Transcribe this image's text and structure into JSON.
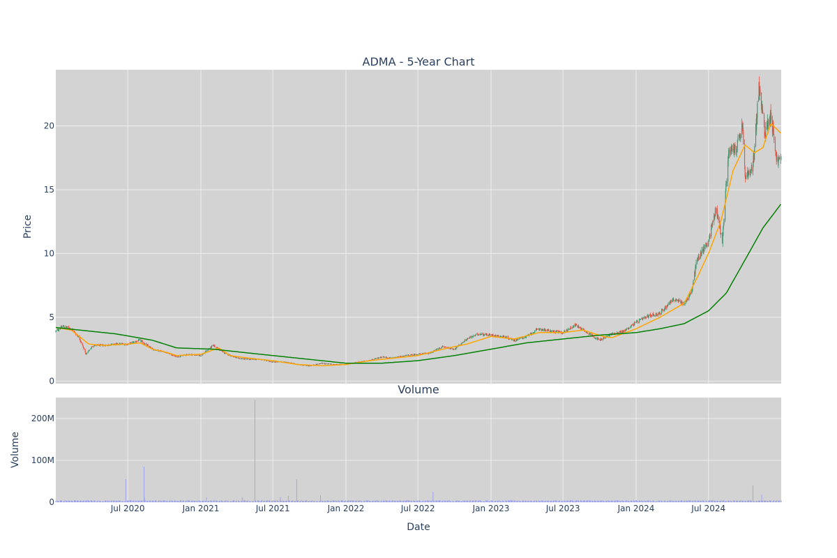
{
  "colors": {
    "plot_bg": "#d3d3d3",
    "grid": "#eeeeee",
    "up_candle": "#3d9970",
    "down_candle": "#ef4b3c",
    "ma_short": "#ffa500",
    "ma_long": "#008000",
    "volume_bar": "#9aa0f0",
    "text": "#2a3f5f"
  },
  "chart_data": [
    {
      "type": "candlestick",
      "title": "ADMA - 5-Year Chart",
      "ylabel": "Price",
      "ylim": [
        0,
        25
      ],
      "grid": true,
      "legend": "none",
      "yticks": [
        0,
        5,
        10,
        15,
        20
      ],
      "ytick_labels": [
        "0",
        "5",
        "10",
        "15",
        "20"
      ],
      "xrange": [
        "2020-01-02",
        "2024-12-31"
      ],
      "price_anchors": [
        [
          "2020-01-02",
          3.9
        ],
        [
          "2020-01-20",
          4.3
        ],
        [
          "2020-02-10",
          4.1
        ],
        [
          "2020-03-01",
          3.4
        ],
        [
          "2020-03-18",
          2.1
        ],
        [
          "2020-04-05",
          2.8
        ],
        [
          "2020-05-01",
          2.8
        ],
        [
          "2020-06-01",
          2.9
        ],
        [
          "2020-07-01",
          2.9
        ],
        [
          "2020-08-01",
          3.2
        ],
        [
          "2020-09-01",
          2.5
        ],
        [
          "2020-10-01",
          2.3
        ],
        [
          "2020-11-01",
          1.9
        ],
        [
          "2020-12-01",
          2.1
        ],
        [
          "2021-01-01",
          2.0
        ],
        [
          "2021-02-01",
          2.8
        ],
        [
          "2021-03-01",
          2.2
        ],
        [
          "2021-04-01",
          1.8
        ],
        [
          "2021-05-01",
          1.7
        ],
        [
          "2021-06-01",
          1.7
        ],
        [
          "2021-07-01",
          1.5
        ],
        [
          "2021-08-01",
          1.5
        ],
        [
          "2021-09-01",
          1.3
        ],
        [
          "2021-10-01",
          1.2
        ],
        [
          "2021-11-01",
          1.4
        ],
        [
          "2021-12-01",
          1.3
        ],
        [
          "2022-01-01",
          1.3
        ],
        [
          "2022-02-01",
          1.5
        ],
        [
          "2022-03-01",
          1.6
        ],
        [
          "2022-04-01",
          1.9
        ],
        [
          "2022-05-01",
          1.8
        ],
        [
          "2022-06-01",
          2.0
        ],
        [
          "2022-07-01",
          2.1
        ],
        [
          "2022-08-01",
          2.2
        ],
        [
          "2022-09-01",
          2.7
        ],
        [
          "2022-10-01",
          2.5
        ],
        [
          "2022-11-01",
          3.3
        ],
        [
          "2022-12-01",
          3.7
        ],
        [
          "2023-01-01",
          3.6
        ],
        [
          "2023-02-01",
          3.5
        ],
        [
          "2023-03-01",
          3.2
        ],
        [
          "2023-04-01",
          3.5
        ],
        [
          "2023-05-01",
          4.1
        ],
        [
          "2023-06-01",
          3.9
        ],
        [
          "2023-07-01",
          3.8
        ],
        [
          "2023-08-01",
          4.4
        ],
        [
          "2023-09-01",
          3.8
        ],
        [
          "2023-10-01",
          3.2
        ],
        [
          "2023-11-01",
          3.7
        ],
        [
          "2023-12-01",
          3.9
        ],
        [
          "2024-01-01",
          4.6
        ],
        [
          "2024-02-01",
          5.1
        ],
        [
          "2024-03-01",
          5.3
        ],
        [
          "2024-04-01",
          6.4
        ],
        [
          "2024-05-01",
          6.1
        ],
        [
          "2024-05-20",
          7.0
        ],
        [
          "2024-06-01",
          9.4
        ],
        [
          "2024-07-01",
          11.0
        ],
        [
          "2024-07-20",
          13.6
        ],
        [
          "2024-08-05",
          11.0
        ],
        [
          "2024-08-20",
          17.8
        ],
        [
          "2024-09-10",
          18.3
        ],
        [
          "2024-09-25",
          20.0
        ],
        [
          "2024-10-01",
          16.0
        ],
        [
          "2024-10-20",
          16.5
        ],
        [
          "2024-11-05",
          23.0
        ],
        [
          "2024-11-20",
          19.5
        ],
        [
          "2024-12-05",
          21.0
        ],
        [
          "2024-12-20",
          17.3
        ],
        [
          "2024-12-31",
          17.3
        ]
      ],
      "ma_short": [
        [
          "2020-01-02",
          4.2
        ],
        [
          "2020-02-10",
          4.0
        ],
        [
          "2020-03-25",
          2.9
        ],
        [
          "2020-05-01",
          2.8
        ],
        [
          "2020-07-01",
          2.9
        ],
        [
          "2020-08-01",
          3.0
        ],
        [
          "2020-09-01",
          2.5
        ],
        [
          "2020-10-01",
          2.3
        ],
        [
          "2020-11-01",
          2.0
        ],
        [
          "2021-01-01",
          2.1
        ],
        [
          "2021-02-15",
          2.6
        ],
        [
          "2021-03-15",
          2.0
        ],
        [
          "2021-05-01",
          1.8
        ],
        [
          "2021-07-01",
          1.6
        ],
        [
          "2021-09-01",
          1.3
        ],
        [
          "2021-11-01",
          1.2
        ],
        [
          "2022-01-01",
          1.3
        ],
        [
          "2022-03-01",
          1.6
        ],
        [
          "2022-05-01",
          1.8
        ],
        [
          "2022-07-01",
          2.0
        ],
        [
          "2022-09-01",
          2.5
        ],
        [
          "2022-11-01",
          2.9
        ],
        [
          "2023-01-01",
          3.5
        ],
        [
          "2023-03-01",
          3.3
        ],
        [
          "2023-05-01",
          3.8
        ],
        [
          "2023-07-01",
          3.8
        ],
        [
          "2023-08-20",
          4.0
        ],
        [
          "2023-10-10",
          3.5
        ],
        [
          "2023-11-01",
          3.4
        ],
        [
          "2024-01-01",
          4.1
        ],
        [
          "2024-03-01",
          5.0
        ],
        [
          "2024-05-01",
          6.1
        ],
        [
          "2024-06-01",
          8.0
        ],
        [
          "2024-07-01",
          10.0
        ],
        [
          "2024-08-01",
          12.5
        ],
        [
          "2024-09-01",
          16.5
        ],
        [
          "2024-10-01",
          18.5
        ],
        [
          "2024-10-25",
          17.9
        ],
        [
          "2024-11-15",
          18.3
        ],
        [
          "2024-12-05",
          20.2
        ],
        [
          "2024-12-31",
          19.4
        ]
      ],
      "ma_long": [
        [
          "2020-01-02",
          4.2
        ],
        [
          "2020-03-01",
          4.0
        ],
        [
          "2020-06-01",
          3.7
        ],
        [
          "2020-09-01",
          3.2
        ],
        [
          "2020-11-01",
          2.6
        ],
        [
          "2021-02-01",
          2.5
        ],
        [
          "2021-05-01",
          2.2
        ],
        [
          "2021-08-01",
          1.9
        ],
        [
          "2021-11-01",
          1.6
        ],
        [
          "2022-01-01",
          1.4
        ],
        [
          "2022-04-01",
          1.4
        ],
        [
          "2022-07-01",
          1.6
        ],
        [
          "2022-10-01",
          2.0
        ],
        [
          "2023-01-01",
          2.5
        ],
        [
          "2023-04-01",
          3.0
        ],
        [
          "2023-07-01",
          3.3
        ],
        [
          "2023-10-01",
          3.6
        ],
        [
          "2024-01-01",
          3.8
        ],
        [
          "2024-03-01",
          4.1
        ],
        [
          "2024-05-01",
          4.5
        ],
        [
          "2024-07-01",
          5.5
        ],
        [
          "2024-08-15",
          6.9
        ],
        [
          "2024-10-01",
          9.5
        ],
        [
          "2024-11-15",
          12.0
        ],
        [
          "2024-12-31",
          13.9
        ]
      ]
    },
    {
      "type": "bar",
      "title": "Volume",
      "xlabel": "Date",
      "ylabel": "Volume",
      "ylim": [
        0,
        250000000
      ],
      "grid": true,
      "yticks": [
        0,
        100000000,
        200000000
      ],
      "ytick_labels": [
        "0",
        "100M",
        "200M"
      ],
      "xticks": [
        "2020-07-01",
        "2021-01-01",
        "2021-07-01",
        "2022-01-01",
        "2022-07-01",
        "2023-01-01",
        "2023-07-01",
        "2024-01-01",
        "2024-07-01"
      ],
      "xtick_labels": [
        "Jul 2020",
        "Jan 2021",
        "Jul 2021",
        "Jan 2022",
        "Jul 2022",
        "Jan 2023",
        "Jul 2023",
        "Jan 2024",
        "Jul 2024"
      ],
      "baseline_volume": 3000000,
      "volume_spikes": [
        [
          "2020-06-26",
          55000000
        ],
        [
          "2020-08-11",
          85000000
        ],
        [
          "2020-08-12",
          12000000
        ],
        [
          "2021-01-15",
          12000000
        ],
        [
          "2021-04-15",
          12000000
        ],
        [
          "2021-05-17",
          245000000
        ],
        [
          "2021-07-20",
          12000000
        ],
        [
          "2021-08-09",
          15000000
        ],
        [
          "2021-08-30",
          55000000
        ],
        [
          "2021-10-29",
          17000000
        ],
        [
          "2022-08-08",
          25000000
        ],
        [
          "2024-06-15",
          8000000
        ],
        [
          "2024-10-21",
          40000000
        ],
        [
          "2024-11-12",
          18000000
        ]
      ]
    }
  ]
}
